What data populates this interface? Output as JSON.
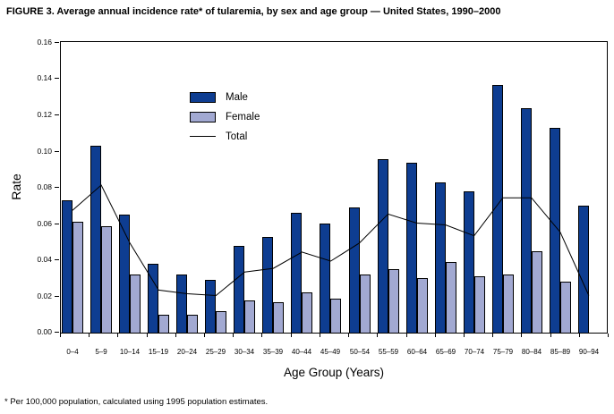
{
  "title": "FIGURE 3. Average annual incidence rate* of tularemia, by sex and age group — United States, 1990–2000",
  "footnote": "* Per 100,000 population, calculated using 1995 population estimates.",
  "colors": {
    "male": "#0e3d91",
    "female": "#a2a9d2",
    "total_line": "#000000",
    "frame": "#000000"
  },
  "chart_data": {
    "type": "bar",
    "title": "FIGURE 3. Average annual incidence rate* of tularemia, by sex and age group — United States, 1990–2000",
    "xlabel": "Age Group (Years)",
    "ylabel": "Rate",
    "ylim": [
      0,
      0.16
    ],
    "y_tick_labels": [
      "0.00",
      "0.02",
      "0.04",
      "0.06",
      "0.08",
      "0.10",
      "0.12",
      "0.14",
      "0.16"
    ],
    "grid": false,
    "legend_position": "upper-left-inside",
    "categories": [
      "0–4",
      "5–9",
      "10–14",
      "15–19",
      "20–24",
      "25–29",
      "30–34",
      "35–39",
      "40–44",
      "45–49",
      "50–54",
      "55–59",
      "60–64",
      "65–69",
      "70–74",
      "75–79",
      "80–84",
      "85–89",
      "90–94"
    ],
    "series": [
      {
        "name": "Male",
        "type": "bar",
        "color": "#0e3d91",
        "values": [
          0.073,
          0.103,
          0.065,
          0.038,
          0.032,
          0.029,
          0.048,
          0.053,
          0.066,
          0.06,
          0.069,
          0.096,
          0.094,
          0.083,
          0.078,
          0.137,
          0.124,
          0.113,
          0.07
        ]
      },
      {
        "name": "Female",
        "type": "bar",
        "color": "#a2a9d2",
        "values": [
          0.061,
          0.059,
          0.032,
          0.01,
          0.01,
          0.012,
          0.018,
          0.017,
          0.022,
          0.019,
          0.032,
          0.035,
          0.03,
          0.039,
          0.031,
          0.032,
          0.045,
          0.028,
          null
        ]
      },
      {
        "name": "Total",
        "type": "line",
        "color": "#000000",
        "values": [
          0.067,
          0.081,
          0.049,
          0.023,
          0.021,
          0.02,
          0.033,
          0.035,
          0.044,
          0.039,
          0.049,
          0.065,
          0.06,
          0.059,
          0.053,
          0.074,
          0.074,
          0.055,
          0.02
        ]
      }
    ]
  }
}
